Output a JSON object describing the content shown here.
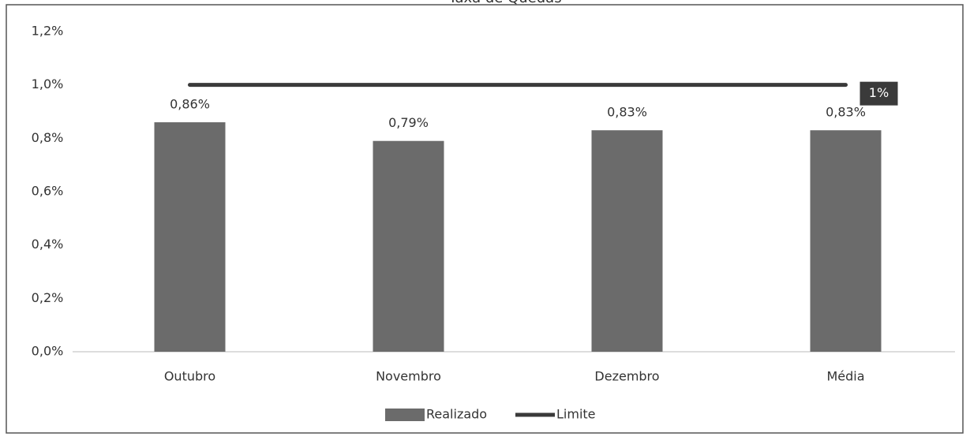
{
  "chart_data": {
    "type": "bar",
    "title": "Taxa de Quedas",
    "categories": [
      "Outubro",
      "Novembro",
      "Dezembro",
      "Média"
    ],
    "series": [
      {
        "name": "Realizado",
        "type": "bar",
        "color": "#6b6b6b",
        "values": [
          0.86,
          0.79,
          0.83,
          0.83
        ],
        "value_labels": [
          "0,86%",
          "0,79%",
          "0,83%",
          "0,83%"
        ]
      },
      {
        "name": "Limite",
        "type": "line",
        "color": "#3a3a3a",
        "values": [
          1,
          1,
          1,
          1
        ],
        "value_labels": [
          null,
          null,
          null,
          "1%"
        ]
      }
    ],
    "ylim": [
      0,
      1.2
    ],
    "yticks": [
      {
        "value": 0,
        "label": "0,0%"
      },
      {
        "value": 0.2,
        "label": "0,2%"
      },
      {
        "value": 0.4,
        "label": "0,4%"
      },
      {
        "value": 0.6,
        "label": "0,6%"
      },
      {
        "value": 0.8,
        "label": "0,8%"
      },
      {
        "value": 1,
        "label": "1,0%"
      },
      {
        "value": 1.2,
        "label": "1,2%"
      }
    ],
    "legend": "bottom"
  }
}
